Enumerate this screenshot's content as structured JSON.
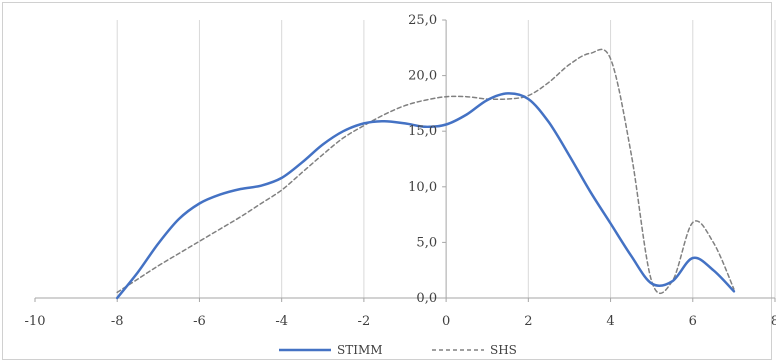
{
  "chart_data": {
    "type": "line",
    "title": "",
    "xlabel": "",
    "ylabel": "",
    "xlim": [
      -10,
      8
    ],
    "ylim": [
      0,
      25
    ],
    "x_ticks": [
      -10,
      -8,
      -6,
      -4,
      -2,
      0,
      2,
      4,
      6,
      8
    ],
    "x_tick_labels": [
      "-10",
      "-8",
      "-6",
      "-4",
      "-2",
      "0",
      "2",
      "4",
      "6",
      "8"
    ],
    "y_ticks": [
      0,
      5,
      10,
      15,
      20,
      25
    ],
    "y_tick_labels": [
      "0,0",
      "5,0",
      "10,0",
      "15,0",
      "20,0",
      "25,0"
    ],
    "grid": "vertical",
    "legend": "bottom",
    "series": [
      {
        "name": "STIMM",
        "color": "#4472c4",
        "style": "solid",
        "x": [
          -8,
          -7.5,
          -7,
          -6.5,
          -6,
          -5.5,
          -5,
          -4.5,
          -4,
          -3.5,
          -3,
          -2.5,
          -2,
          -1.5,
          -1,
          -0.5,
          0,
          0.5,
          1,
          1.5,
          2,
          2.5,
          3,
          3.5,
          4,
          4.5,
          5,
          5.5,
          6,
          6.5,
          7
        ],
        "y": [
          0,
          2.3,
          4.9,
          7.1,
          8.5,
          9.3,
          9.8,
          10.1,
          10.8,
          12.2,
          13.8,
          15.0,
          15.7,
          15.9,
          15.7,
          15.4,
          15.6,
          16.5,
          17.8,
          18.4,
          17.9,
          15.8,
          12.8,
          9.6,
          6.7,
          3.8,
          1.3,
          1.5,
          3.6,
          2.5,
          0.6
        ]
      },
      {
        "name": "SHS",
        "color": "#808080",
        "style": "dashed",
        "x": [
          -8,
          -7.5,
          -7,
          -6.5,
          -6,
          -5.5,
          -5,
          -4.5,
          -4,
          -3.5,
          -3,
          -2.5,
          -2,
          -1.5,
          -1,
          -0.5,
          0,
          0.5,
          1,
          1.5,
          2,
          2.5,
          3,
          3.5,
          4,
          4.5,
          5,
          5.5,
          6,
          6.5,
          7
        ],
        "y": [
          0.5,
          1.7,
          2.9,
          4.0,
          5.1,
          6.2,
          7.3,
          8.5,
          9.7,
          11.3,
          12.9,
          14.4,
          15.5,
          16.5,
          17.3,
          17.8,
          18.1,
          18.1,
          17.9,
          17.9,
          18.2,
          19.4,
          21.0,
          22.0,
          21.5,
          13.0,
          1.5,
          1.5,
          6.8,
          5.0,
          0.8
        ]
      }
    ]
  }
}
